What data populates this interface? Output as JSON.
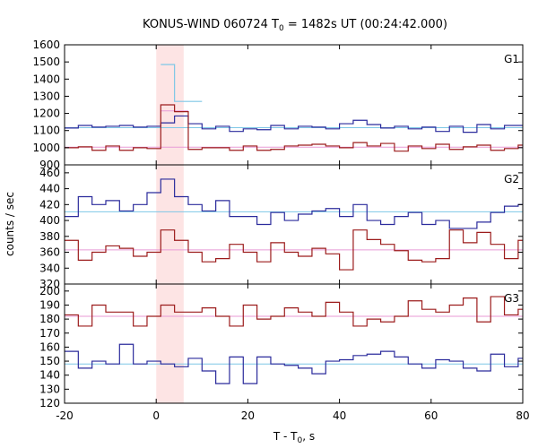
{
  "chart_data": {
    "type": "line",
    "title_main": "KONUS-WIND 060724 T",
    "title_sub": "0",
    "title_rest": " = 1482s UT (00:24:42.000)",
    "xlabel_main": "T - T",
    "xlabel_sub": "0",
    "xlabel_rest": ", s",
    "ylabel": "counts / sec",
    "xlim": [
      -20,
      80
    ],
    "x_ticks": [
      "-20",
      "0",
      "20",
      "40",
      "60",
      "80"
    ],
    "highlight_interval": [
      0,
      6
    ],
    "colors": {
      "blue": "#2b2b9c",
      "red": "#9c1c1c",
      "cyan": "#7ec7e6",
      "pink": "#e89ad6",
      "highlight": "#fde4e4"
    },
    "panels": [
      {
        "name": "G1",
        "ylim": [
          900,
          1600
        ],
        "y_ticks": [
          900,
          1000,
          1100,
          1200,
          1300,
          1400,
          1500,
          1600
        ],
        "series": [
          {
            "color": "blue",
            "x": [
              -20,
              -17,
              -14,
              -11,
              -8,
              -5,
              -2,
              1,
              4,
              7,
              10,
              13,
              16,
              19,
              22,
              25,
              28,
              31,
              34,
              37,
              40,
              43,
              46,
              49,
              52,
              55,
              58,
              61,
              64,
              67,
              70,
              73,
              76,
              79,
              80
            ],
            "values": [
              1115,
              1130,
              1120,
              1125,
              1130,
              1120,
              1125,
              1145,
              1185,
              1140,
              1110,
              1125,
              1095,
              1110,
              1105,
              1130,
              1110,
              1125,
              1120,
              1110,
              1140,
              1160,
              1135,
              1115,
              1125,
              1110,
              1120,
              1095,
              1125,
              1090,
              1135,
              1110,
              1130,
              1130,
              1130
            ]
          },
          {
            "color": "red",
            "x": [
              -20,
              -17,
              -14,
              -11,
              -8,
              -5,
              -2,
              1,
              4,
              7,
              10,
              13,
              16,
              19,
              22,
              25,
              28,
              31,
              34,
              37,
              40,
              43,
              46,
              49,
              52,
              55,
              58,
              61,
              64,
              67,
              70,
              73,
              76,
              79,
              80
            ],
            "values": [
              1000,
              1005,
              985,
              1010,
              985,
              1000,
              995,
              1250,
              1210,
              990,
              1000,
              1000,
              985,
              1010,
              985,
              990,
              1010,
              1015,
              1020,
              1010,
              1000,
              1030,
              1010,
              1025,
              980,
              1010,
              995,
              1020,
              990,
              1005,
              1015,
              985,
              995,
              1015,
              1015
            ]
          },
          {
            "color": "cyan",
            "x": [
              1,
              4,
              7
            ],
            "values": [
              1485,
              1270,
              1270
            ]
          }
        ],
        "background_levels": [
          {
            "color": "cyan",
            "value": 1117
          },
          {
            "color": "pink",
            "value": 1003
          }
        ],
        "pre_burst_red_level": 1215
      },
      {
        "name": "G2",
        "ylim": [
          320,
          470
        ],
        "y_ticks": [
          320,
          340,
          360,
          380,
          400,
          420,
          440,
          460
        ],
        "series": [
          {
            "color": "blue",
            "x": [
              -20,
              -17,
              -14,
              -11,
              -8,
              -5,
              -2,
              1,
              4,
              7,
              10,
              13,
              16,
              19,
              22,
              25,
              28,
              31,
              34,
              37,
              40,
              43,
              46,
              49,
              52,
              55,
              58,
              61,
              64,
              67,
              70,
              73,
              76,
              79,
              80
            ],
            "values": [
              405,
              430,
              420,
              425,
              412,
              420,
              435,
              452,
              430,
              420,
              412,
              425,
              405,
              405,
              395,
              410,
              400,
              408,
              412,
              415,
              405,
              420,
              400,
              395,
              405,
              410,
              395,
              400,
              390,
              390,
              398,
              410,
              418,
              420,
              420
            ]
          },
          {
            "color": "red",
            "x": [
              -20,
              -17,
              -14,
              -11,
              -8,
              -5,
              -2,
              1,
              4,
              7,
              10,
              13,
              16,
              19,
              22,
              25,
              28,
              31,
              34,
              37,
              40,
              43,
              46,
              49,
              52,
              55,
              58,
              61,
              64,
              67,
              70,
              73,
              76,
              79,
              80
            ],
            "values": [
              375,
              350,
              360,
              368,
              365,
              355,
              360,
              388,
              375,
              360,
              348,
              352,
              370,
              360,
              348,
              372,
              360,
              355,
              365,
              358,
              338,
              388,
              376,
              370,
              362,
              350,
              348,
              352,
              388,
              372,
              385,
              370,
              352,
              375,
              375
            ]
          }
        ],
        "background_levels": [
          {
            "color": "cyan",
            "value": 411
          },
          {
            "color": "pink",
            "value": 363
          }
        ]
      },
      {
        "name": "G3",
        "ylim": [
          120,
          205
        ],
        "y_ticks": [
          120,
          130,
          140,
          150,
          160,
          170,
          180,
          190,
          200
        ],
        "series": [
          {
            "color": "blue",
            "x": [
              -20,
              -17,
              -14,
              -11,
              -8,
              -5,
              -2,
              1,
              4,
              7,
              10,
              13,
              16,
              19,
              22,
              25,
              28,
              31,
              34,
              37,
              40,
              43,
              46,
              49,
              52,
              55,
              58,
              61,
              64,
              67,
              70,
              73,
              76,
              79,
              80
            ],
            "values": [
              157,
              145,
              150,
              148,
              162,
              148,
              150,
              148,
              146,
              152,
              143,
              134,
              153,
              134,
              153,
              148,
              147,
              145,
              141,
              150,
              151,
              154,
              155,
              157,
              153,
              148,
              145,
              151,
              150,
              145,
              143,
              155,
              146,
              152,
              152
            ]
          },
          {
            "color": "red",
            "x": [
              -20,
              -17,
              -14,
              -11,
              -8,
              -5,
              -2,
              1,
              4,
              7,
              10,
              13,
              16,
              19,
              22,
              25,
              28,
              31,
              34,
              37,
              40,
              43,
              46,
              49,
              52,
              55,
              58,
              61,
              64,
              67,
              70,
              73,
              76,
              79,
              80
            ],
            "values": [
              183,
              175,
              190,
              185,
              185,
              175,
              182,
              190,
              185,
              185,
              188,
              182,
              175,
              190,
              180,
              182,
              188,
              185,
              182,
              192,
              185,
              175,
              180,
              178,
              182,
              193,
              187,
              185,
              190,
              195,
              178,
              196,
              183,
              187,
              187
            ]
          }
        ],
        "background_levels": [
          {
            "color": "cyan",
            "value": 148
          },
          {
            "color": "pink",
            "value": 182
          }
        ]
      }
    ]
  }
}
